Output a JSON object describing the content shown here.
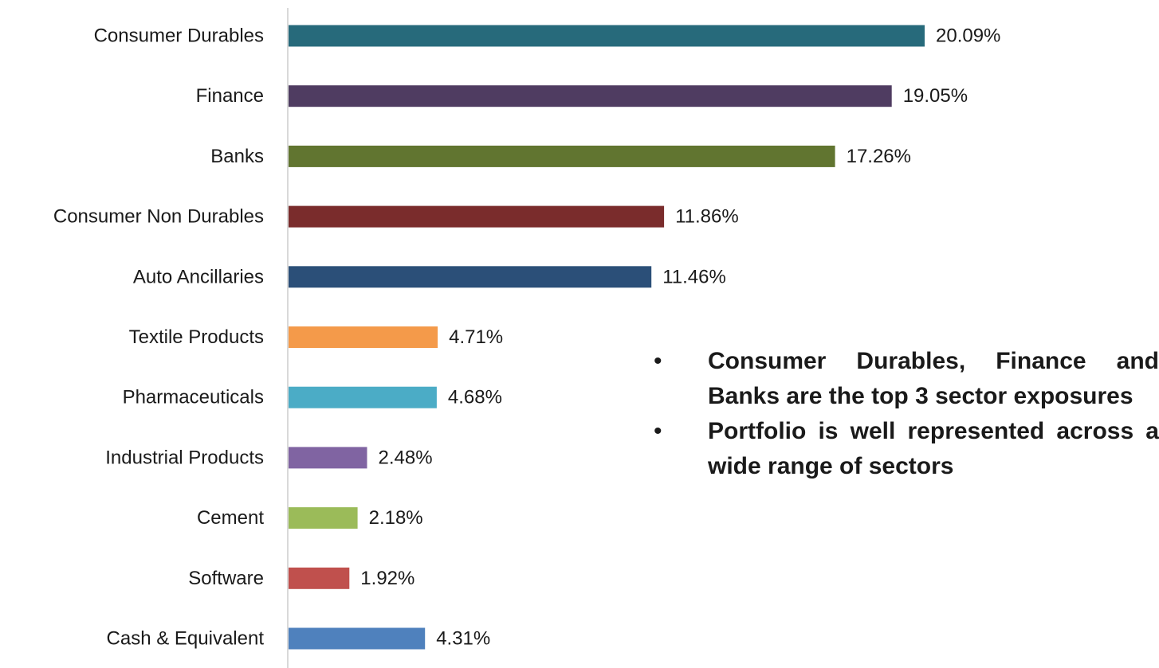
{
  "chart_data": {
    "type": "bar",
    "orientation": "horizontal",
    "categories": [
      "Consumer Durables",
      "Finance",
      "Banks",
      "Consumer Non Durables",
      "Auto Ancillaries",
      "Textile Products",
      "Pharmaceuticals",
      "Industrial Products",
      "Cement",
      "Software",
      "Cash & Equivalent"
    ],
    "values": [
      20.09,
      19.05,
      17.26,
      11.86,
      11.46,
      4.71,
      4.68,
      2.48,
      2.18,
      1.92,
      4.31
    ],
    "value_labels": [
      "20.09%",
      "19.05%",
      "17.26%",
      "11.86%",
      "11.46%",
      "4.71%",
      "4.68%",
      "2.48%",
      "2.18%",
      "1.92%",
      "4.31%"
    ],
    "colors": [
      "#276a7b",
      "#4f3c61",
      "#617530",
      "#7a2c2c",
      "#2b4f78",
      "#f49a4a",
      "#4bacc6",
      "#8064a2",
      "#9bbb59",
      "#c0504d",
      "#4f81bd"
    ],
    "xlim": [
      0,
      20.09
    ],
    "grid": false,
    "legend": "none",
    "title": "",
    "xlabel": "",
    "ylabel": ""
  },
  "notes": [
    {
      "bullet": "•",
      "text": "Consumer Durables, Finance and Banks are the top 3 sector exposures"
    },
    {
      "bullet": "•",
      "text": "Portfolio is well represented across a wide range of sectors"
    }
  ]
}
